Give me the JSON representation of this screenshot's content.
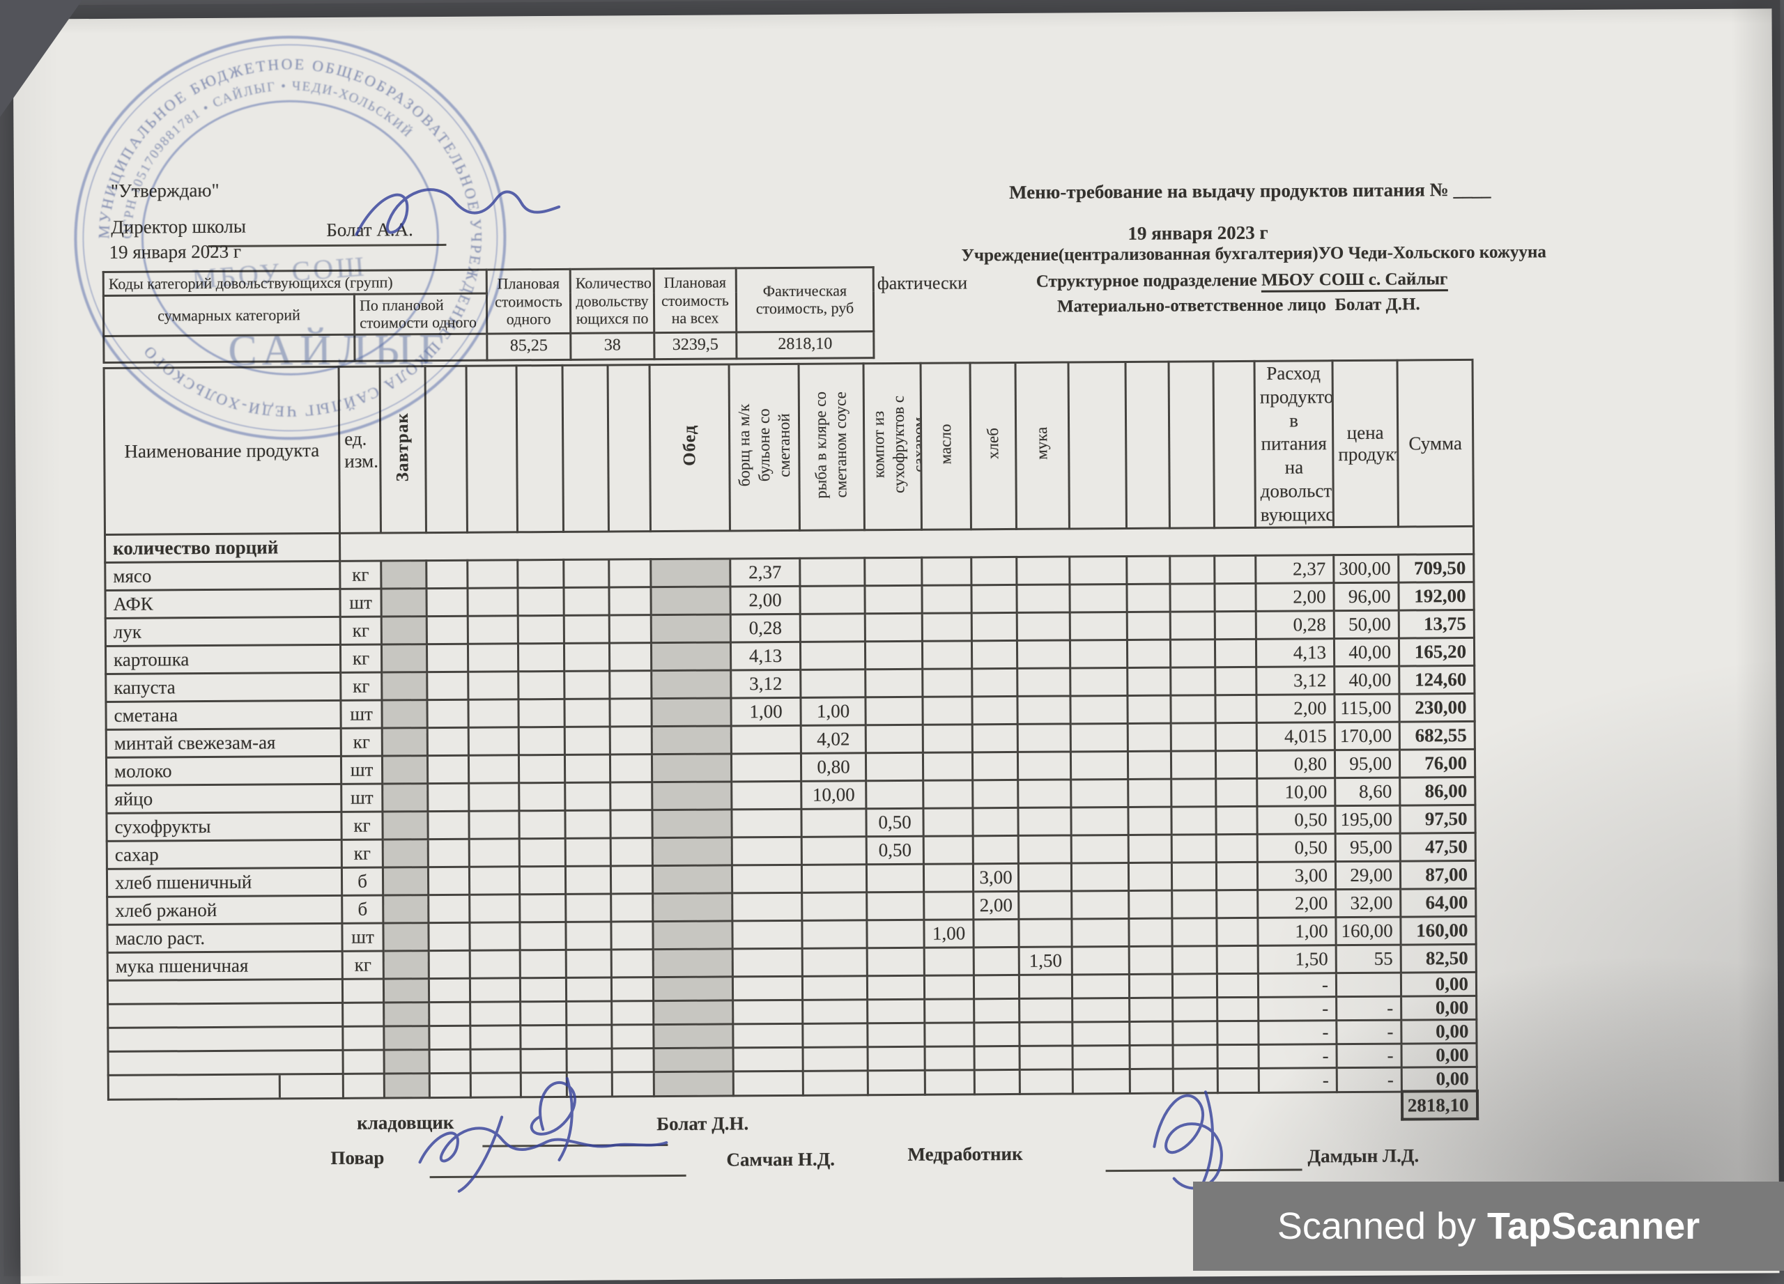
{
  "header_left": {
    "approve": "\"Утверждаю\"",
    "director_label": "Директор школы",
    "director_name": "Болат А.А.",
    "date": "19 января 2023 г"
  },
  "header_right": {
    "title": "Меню-требование на выдачу продуктов питания № ____",
    "date": "19 января 2023 г",
    "institution": "Учреждение(централизованная бухгалтерия)УО Чеди-Хольского кожууна",
    "subdivision_label": "Структурное подразделение",
    "subdivision_value": "МБОУ  СОШ с. Сайлыг",
    "responsible_label": "Материально-ответственное лицо",
    "responsible_name": "Болат Д.Н."
  },
  "summary_table": {
    "codes_header": "Коды категорий довольствующихся (групп)",
    "col_total_categories": "суммарных категорий",
    "col_by_planned_cost": "По плановой стоимости одного",
    "col_planned_cost_one": "Плановая стоимость одного",
    "col_quantity": "Количество довольству ющихся по",
    "col_planned_cost_all": "Плановая стоимость на всех",
    "col_actual_cost": "Фактическая стоимость, руб",
    "actual_label": "фактически",
    "values": {
      "planned_cost_one": "85,25",
      "quantity": "38",
      "planned_cost_all": "3239,5",
      "actual_cost": "2818,10"
    }
  },
  "main_table": {
    "col_product": "Наименование продукта",
    "col_unit": "ед. изм.",
    "col_breakfast": "Завтрак",
    "col_lunch": "Обед",
    "dish_cols": [
      "борщ на м/к бульоне со сметаной",
      "рыба в кляре со сметаном соусе",
      "компот из сухофруктов с сахаром",
      "масло",
      "хлеб",
      "мука"
    ],
    "col_expense": "Расход продукто в питания на довольст-вующихс",
    "col_price": "цена продукта",
    "col_sum": "Сумма",
    "portions_label": "количество порций",
    "rows": [
      {
        "name": "мясо",
        "unit": "кг",
        "borsch": "2,37",
        "expense": "2,37",
        "price": "300,00",
        "sum": "709,50"
      },
      {
        "name": "АФК",
        "unit": "шт",
        "borsch": "2,00",
        "expense": "2,00",
        "price": "96,00",
        "sum": "192,00"
      },
      {
        "name": "лук",
        "unit": "кг",
        "borsch": "0,28",
        "expense": "0,28",
        "price": "50,00",
        "sum": "13,75"
      },
      {
        "name": "картошка",
        "unit": "кг",
        "borsch": "4,13",
        "expense": "4,13",
        "price": "40,00",
        "sum": "165,20"
      },
      {
        "name": "капуста",
        "unit": "кг",
        "borsch": "3,12",
        "expense": "3,12",
        "price": "40,00",
        "sum": "124,60"
      },
      {
        "name": "сметана",
        "unit": "шт",
        "borsch": "1,00",
        "fish": "1,00",
        "expense": "2,00",
        "price": "115,00",
        "sum": "230,00"
      },
      {
        "name": "минтай свежезам-ая",
        "unit": "кг",
        "fish": "4,02",
        "expense": "4,015",
        "price": "170,00",
        "sum": "682,55"
      },
      {
        "name": "молоко",
        "unit": "шт",
        "fish": "0,80",
        "expense": "0,80",
        "price": "95,00",
        "sum": "76,00"
      },
      {
        "name": "яйцо",
        "unit": "шт",
        "fish": "10,00",
        "expense": "10,00",
        "price": "8,60",
        "sum": "86,00"
      },
      {
        "name": "сухофрукты",
        "unit": "кг",
        "compote": "0,50",
        "expense": "0,50",
        "price": "195,00",
        "sum": "97,50"
      },
      {
        "name": "сахар",
        "unit": "кг",
        "compote": "0,50",
        "expense": "0,50",
        "price": "95,00",
        "sum": "47,50"
      },
      {
        "name": "хлеб пшеничный",
        "unit": "б",
        "bread": "3,00",
        "expense": "3,00",
        "price": "29,00",
        "sum": "87,00"
      },
      {
        "name": "хлеб ржаной",
        "unit": "б",
        "bread": "2,00",
        "expense": "2,00",
        "price": "32,00",
        "sum": "64,00"
      },
      {
        "name": "масло раст.",
        "unit": "шт",
        "butter": "1,00",
        "expense": "1,00",
        "price": "160,00",
        "sum": "160,00"
      },
      {
        "name": "мука пшеничная",
        "unit": "кг",
        "flour": "1,50",
        "expense": "1,50",
        "price": "55",
        "sum": "82,50"
      },
      {
        "empty": true,
        "expense": "-",
        "sum": "0,00"
      },
      {
        "empty": true,
        "expense": "-",
        "price": "-",
        "sum": "0,00"
      },
      {
        "empty": true,
        "expense": "-",
        "price": "-",
        "sum": "0,00"
      },
      {
        "empty": true,
        "expense": "-",
        "price": "-",
        "sum": "0,00"
      },
      {
        "empty": true,
        "split": true,
        "expense": "-",
        "price": "-",
        "sum": "0,00"
      }
    ],
    "total": "2818,10"
  },
  "footer": {
    "storekeeper_label": "кладовщик",
    "storekeeper_name": "Болат Д.Н.",
    "cook_label": "Повар",
    "cook_name": "Самчан Н.Д.",
    "med_label": "Медработник",
    "med_name": "Дамдын Л.Д."
  },
  "stamp": {
    "ring_outer": "МУНИЦИПАЛЬНОЕ БЮДЖЕТНОЕ ОБЩЕОБРАЗОВАТЕЛЬНОЕ УЧРЕЖДЕНИЕ ШКОЛА САЙЛЫГ ЧЕДИ-ХОЛЬСКОГО",
    "ring_inner": "ОГРН 1051709881781 • САЙЛЫГ • ЧЕДИ-ХОЛЬСКИЙ",
    "center_line1": "МБОУ СОШ",
    "center_line2": "САЙЛЫГ"
  },
  "watermark": {
    "prefix": "Scanned by",
    "brand": "TapScanner"
  },
  "colors": {
    "ink_blue": "#37439b",
    "stamp_blue": "#5870bc",
    "table_line": "#45433f",
    "paper": "#eae9e5",
    "watermark_bg": "#7a7a7a"
  }
}
